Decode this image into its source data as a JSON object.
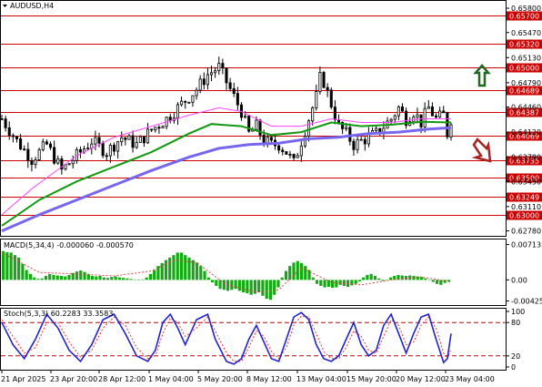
{
  "chart_data": [
    {
      "type": "candlestick",
      "symbol": "AUDUSD,H4",
      "ylim": [
        0.6275,
        0.6585
      ],
      "price_ticks": [
        "0.65800",
        "0.65470",
        "0.65130",
        "0.64790",
        "0.64460",
        "0.64120",
        "0.63780",
        "0.63450",
        "0.63110",
        "0.62780"
      ],
      "levels": [
        {
          "label": "0.65700",
          "value": 0.657
        },
        {
          "label": "0.65320",
          "value": 0.6532
        },
        {
          "label": "0.65000",
          "value": 0.65
        },
        {
          "label": "0.64689",
          "value": 0.64689
        },
        {
          "label": "0.64387",
          "value": 0.64387
        },
        {
          "label": "0.64069",
          "value": 0.64069
        },
        {
          "label": "0.63735",
          "value": 0.63735
        },
        {
          "label": "0.63500",
          "value": 0.635
        },
        {
          "label": "0.63249",
          "value": 0.63249
        },
        {
          "label": "0.63000",
          "value": 0.63
        }
      ],
      "close_path": [
        [
          0,
          0.643
        ],
        [
          4,
          0.64
        ],
        [
          8,
          0.6375
        ],
        [
          12,
          0.6395
        ],
        [
          16,
          0.636
        ],
        [
          20,
          0.638
        ],
        [
          24,
          0.64
        ],
        [
          28,
          0.6385
        ],
        [
          32,
          0.6405
        ],
        [
          36,
          0.6395
        ],
        [
          40,
          0.6415
        ],
        [
          44,
          0.643
        ],
        [
          48,
          0.645
        ],
        [
          52,
          0.647
        ],
        [
          55,
          0.649
        ],
        [
          58,
          0.65
        ],
        [
          61,
          0.647
        ],
        [
          64,
          0.644
        ],
        [
          66,
          0.641
        ],
        [
          68,
          0.642
        ],
        [
          70,
          0.64
        ],
        [
          72,
          0.6395
        ],
        [
          74,
          0.6395
        ],
        [
          76,
          0.6385
        ],
        [
          78,
          0.637
        ],
        [
          80,
          0.64
        ],
        [
          82,
          0.643
        ],
        [
          84,
          0.646
        ],
        [
          85,
          0.6485
        ],
        [
          86,
          0.648
        ],
        [
          88,
          0.645
        ],
        [
          90,
          0.642
        ],
        [
          92,
          0.641
        ],
        [
          94,
          0.6395
        ],
        [
          96,
          0.64
        ],
        [
          98,
          0.6405
        ],
        [
          100,
          0.641
        ],
        [
          102,
          0.642
        ],
        [
          104,
          0.643
        ],
        [
          106,
          0.6445
        ],
        [
          108,
          0.643
        ],
        [
          110,
          0.644
        ],
        [
          112,
          0.6425
        ],
        [
          114,
          0.6445
        ],
        [
          116,
          0.643
        ],
        [
          118,
          0.6435
        ],
        [
          119,
          0.641
        ],
        [
          120,
          0.643
        ]
      ],
      "ma_short": [
        [
          0,
          0.63
        ],
        [
          8,
          0.6335
        ],
        [
          20,
          0.638
        ],
        [
          30,
          0.6405
        ],
        [
          40,
          0.642
        ],
        [
          50,
          0.6435
        ],
        [
          58,
          0.6445
        ],
        [
          64,
          0.644
        ],
        [
          72,
          0.642
        ],
        [
          80,
          0.642
        ],
        [
          88,
          0.643
        ],
        [
          96,
          0.6425
        ],
        [
          104,
          0.6425
        ],
        [
          112,
          0.643
        ],
        [
          120,
          0.643
        ]
      ],
      "ma_mid": [
        [
          0,
          0.6285
        ],
        [
          10,
          0.632
        ],
        [
          20,
          0.6345
        ],
        [
          30,
          0.6365
        ],
        [
          40,
          0.6385
        ],
        [
          50,
          0.641
        ],
        [
          56,
          0.6423
        ],
        [
          64,
          0.642
        ],
        [
          72,
          0.6408
        ],
        [
          80,
          0.6412
        ],
        [
          88,
          0.6425
        ],
        [
          96,
          0.642
        ],
        [
          104,
          0.6422
        ],
        [
          112,
          0.6426
        ],
        [
          120,
          0.6425
        ]
      ],
      "ma_long": [
        [
          0,
          0.6278
        ],
        [
          10,
          0.63
        ],
        [
          20,
          0.632
        ],
        [
          30,
          0.634
        ],
        [
          40,
          0.636
        ],
        [
          50,
          0.6378
        ],
        [
          58,
          0.639
        ],
        [
          66,
          0.6395
        ],
        [
          74,
          0.6397
        ],
        [
          82,
          0.6403
        ],
        [
          90,
          0.6405
        ],
        [
          98,
          0.641
        ],
        [
          106,
          0.6412
        ],
        [
          114,
          0.6416
        ],
        [
          120,
          0.6418
        ]
      ]
    },
    {
      "type": "bar",
      "title": "MACD(5,34,4) -0.000060 -0.000570",
      "ylim": [
        -0.0047,
        0.0076
      ],
      "y_ticks": [
        "0.007135",
        "0.00",
        "-0.004258"
      ],
      "histogram": [
        0.0058,
        0.0056,
        0.0055,
        0.005,
        0.0045,
        0.0032,
        0.002,
        0.0012,
        0.0005,
        0.0002,
        0.0003,
        0.0008,
        0.0012,
        0.001,
        0.0009,
        0.0008,
        0.0007,
        0.001,
        0.0014,
        0.0017,
        0.0019,
        0.0016,
        0.0012,
        0.0008,
        0.0007,
        0.0008,
        0.0005,
        0.0004,
        0.0006,
        0.0007,
        0.0005,
        0.0004,
        0.0003,
        0.0002,
        0.0001,
        0.0,
        0.0001,
        0.0005,
        0.0012,
        0.002,
        0.0028,
        0.0034,
        0.004,
        0.0045,
        0.005,
        0.0055,
        0.0055,
        0.005,
        0.0045,
        0.004,
        0.0035,
        0.0028,
        0.0018,
        0.0005,
        -0.0005,
        -0.0012,
        -0.0018,
        -0.002,
        -0.0022,
        -0.002,
        -0.0018,
        -0.0022,
        -0.0025,
        -0.0027,
        -0.003,
        -0.0028,
        -0.0025,
        -0.0032,
        -0.0038,
        -0.004,
        -0.003,
        -0.0015,
        0.0005,
        0.0018,
        0.0028,
        0.0035,
        0.0038,
        0.0034,
        0.0028,
        0.002,
        0.0005,
        -0.0008,
        -0.0012,
        -0.0015,
        -0.0014,
        -0.0016,
        -0.0015,
        -0.001,
        -0.0012,
        -0.0014,
        -0.0011,
        -0.0008,
        -0.0003,
        0.0005,
        0.001,
        0.0012,
        0.0008,
        0.0003,
        -0.0002,
        0.0,
        0.0005,
        0.0008,
        0.001,
        0.0009,
        0.0008,
        0.0009,
        0.0008,
        0.0007,
        0.0006,
        0.0003,
        0.0,
        -0.0004,
        -0.0008,
        -0.001,
        -0.0006,
        -0.0003
      ],
      "signal": [
        [
          0,
          0.0055
        ],
        [
          10,
          0.0015
        ],
        [
          20,
          0.0012
        ],
        [
          30,
          0.0008
        ],
        [
          40,
          0.0018
        ],
        [
          46,
          0.004
        ],
        [
          52,
          0.0035
        ],
        [
          60,
          -0.001
        ],
        [
          68,
          -0.0025
        ],
        [
          74,
          -0.002
        ],
        [
          80,
          0.0025
        ],
        [
          88,
          -0.0005
        ],
        [
          96,
          -0.001
        ],
        [
          104,
          0.0
        ],
        [
          112,
          0.0006
        ],
        [
          120,
          -0.0004
        ]
      ]
    },
    {
      "type": "line",
      "title": "Stoch(5,3,3) 60.2283 33.3583",
      "ylim": [
        0,
        100
      ],
      "y_ticks": [
        "100",
        "80",
        "20",
        "0"
      ],
      "levels": [
        80,
        20
      ],
      "main": [
        [
          0,
          80
        ],
        [
          3,
          40
        ],
        [
          6,
          15
        ],
        [
          9,
          50
        ],
        [
          12,
          95
        ],
        [
          15,
          70
        ],
        [
          18,
          30
        ],
        [
          21,
          10
        ],
        [
          24,
          40
        ],
        [
          27,
          85
        ],
        [
          30,
          95
        ],
        [
          33,
          60
        ],
        [
          36,
          20
        ],
        [
          39,
          10
        ],
        [
          41,
          30
        ],
        [
          43,
          80
        ],
        [
          45,
          95
        ],
        [
          47,
          70
        ],
        [
          49,
          40
        ],
        [
          52,
          85
        ],
        [
          55,
          95
        ],
        [
          57,
          50
        ],
        [
          60,
          10
        ],
        [
          62,
          5
        ],
        [
          64,
          15
        ],
        [
          66,
          50
        ],
        [
          68,
          75
        ],
        [
          70,
          45
        ],
        [
          72,
          15
        ],
        [
          74,
          10
        ],
        [
          76,
          50
        ],
        [
          78,
          90
        ],
        [
          80,
          98
        ],
        [
          82,
          85
        ],
        [
          84,
          40
        ],
        [
          86,
          15
        ],
        [
          88,
          10
        ],
        [
          90,
          20
        ],
        [
          92,
          50
        ],
        [
          94,
          80
        ],
        [
          96,
          40
        ],
        [
          98,
          20
        ],
        [
          100,
          30
        ],
        [
          102,
          75
        ],
        [
          104,
          95
        ],
        [
          106,
          60
        ],
        [
          108,
          25
        ],
        [
          110,
          60
        ],
        [
          112,
          90
        ],
        [
          114,
          95
        ],
        [
          116,
          50
        ],
        [
          118,
          8
        ],
        [
          119,
          15
        ],
        [
          120,
          60
        ]
      ],
      "signal": [
        [
          0,
          85
        ],
        [
          3,
          55
        ],
        [
          6,
          25
        ],
        [
          9,
          35
        ],
        [
          12,
          80
        ],
        [
          15,
          80
        ],
        [
          18,
          45
        ],
        [
          21,
          18
        ],
        [
          24,
          30
        ],
        [
          27,
          70
        ],
        [
          30,
          90
        ],
        [
          33,
          75
        ],
        [
          36,
          35
        ],
        [
          39,
          15
        ],
        [
          41,
          20
        ],
        [
          43,
          60
        ],
        [
          45,
          88
        ],
        [
          47,
          80
        ],
        [
          49,
          55
        ],
        [
          52,
          70
        ],
        [
          55,
          90
        ],
        [
          57,
          65
        ],
        [
          60,
          25
        ],
        [
          62,
          10
        ],
        [
          64,
          10
        ],
        [
          66,
          35
        ],
        [
          68,
          65
        ],
        [
          70,
          55
        ],
        [
          72,
          28
        ],
        [
          74,
          15
        ],
        [
          76,
          35
        ],
        [
          78,
          75
        ],
        [
          80,
          92
        ],
        [
          82,
          90
        ],
        [
          84,
          60
        ],
        [
          86,
          28
        ],
        [
          88,
          15
        ],
        [
          90,
          15
        ],
        [
          92,
          35
        ],
        [
          94,
          65
        ],
        [
          96,
          55
        ],
        [
          98,
          30
        ],
        [
          100,
          25
        ],
        [
          102,
          55
        ],
        [
          104,
          85
        ],
        [
          106,
          75
        ],
        [
          108,
          40
        ],
        [
          110,
          45
        ],
        [
          112,
          75
        ],
        [
          114,
          90
        ],
        [
          116,
          70
        ],
        [
          118,
          25
        ],
        [
          119,
          15
        ],
        [
          120,
          33
        ]
      ]
    }
  ],
  "x_ticks": [
    "21 Apr 2025",
    "23 Apr 20:00",
    "28 Apr 12:00",
    "1 May 04:00",
    "5 May 20:00",
    "8 May 12:00",
    "13 May 04:00",
    "15 May 20:00",
    "20 May 12:00",
    "23 May 04:00"
  ],
  "colors": {
    "resistance_line": "#cc0000",
    "ma_short": "#ff44ff",
    "ma_mid": "#119911",
    "ma_long": "#7766ee",
    "macd_bar": "#11aa11",
    "macd_signal": "#dd4444",
    "stoch_main": "#2222cc",
    "stoch_signal": "#ee3333",
    "arrow": "#226622",
    "arrow_down": "#aa2222"
  }
}
